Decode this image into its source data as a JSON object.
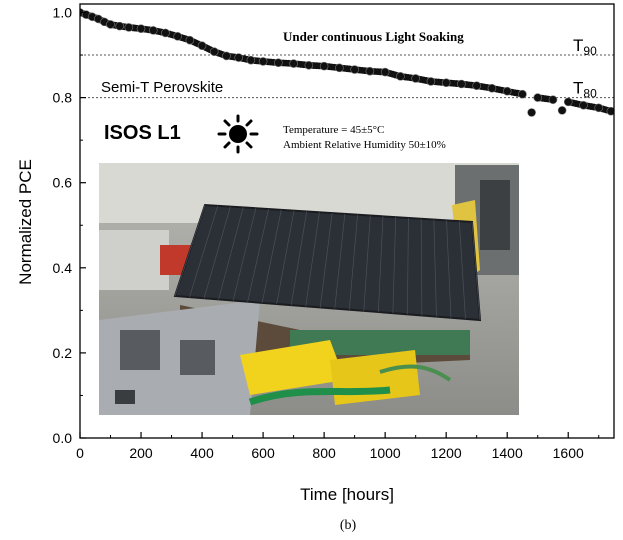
{
  "chart_data": {
    "type": "scatter",
    "xlabel": "Time [hours]",
    "ylabel": "Normalized PCE",
    "xlim": [
      0,
      1750
    ],
    "ylim": [
      0.0,
      1.02
    ],
    "x_ticks": [
      "0",
      "200",
      "400",
      "600",
      "800",
      "1000",
      "1200",
      "1400",
      "1600"
    ],
    "x_tick_values": [
      0,
      200,
      400,
      600,
      800,
      1000,
      1200,
      1400,
      1600
    ],
    "y_ticks": [
      "0.0",
      "0.2",
      "0.4",
      "0.6",
      "0.8",
      "1.0"
    ],
    "y_tick_values": [
      0.0,
      0.2,
      0.4,
      0.6,
      0.8,
      1.0
    ],
    "reference_lines": [
      {
        "label_main": "T",
        "label_sub": "90",
        "y": 0.9
      },
      {
        "label_main": "T",
        "label_sub": "80",
        "y": 0.8
      }
    ],
    "annotations": {
      "condition": "Under continuous Light Soaking",
      "device": "Semi-T Perovskite",
      "protocol": "ISOS L1",
      "temperature": "Temperature = 45±5°C",
      "humidity": "Ambient Relative Humidity 50±10%"
    },
    "series": [
      {
        "marker_color": "#111111",
        "x": [
          0,
          20,
          40,
          60,
          80,
          100,
          130,
          160,
          200,
          240,
          280,
          320,
          360,
          400,
          440,
          480,
          520,
          560,
          600,
          650,
          700,
          750,
          800,
          850,
          900,
          950,
          1000,
          1050,
          1100,
          1150,
          1200,
          1250,
          1300,
          1350,
          1400,
          1450,
          1480,
          1500,
          1550,
          1580,
          1600,
          1650,
          1700,
          1740
        ],
        "y": [
          1.0,
          0.995,
          0.99,
          0.985,
          0.978,
          0.972,
          0.968,
          0.965,
          0.962,
          0.958,
          0.952,
          0.944,
          0.935,
          0.922,
          0.908,
          0.898,
          0.894,
          0.888,
          0.885,
          0.882,
          0.88,
          0.876,
          0.874,
          0.87,
          0.866,
          0.862,
          0.86,
          0.85,
          0.845,
          0.838,
          0.835,
          0.832,
          0.828,
          0.822,
          0.815,
          0.808,
          0.765,
          0.8,
          0.795,
          0.77,
          0.79,
          0.782,
          0.776,
          0.768
        ]
      }
    ]
  },
  "figure": {
    "caption": "(b)",
    "photo_description": "semi-transparent perovskite module under test rig"
  }
}
